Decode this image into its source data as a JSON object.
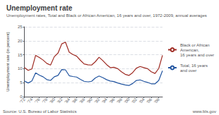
{
  "chart_data": {
    "type": "line",
    "title": "Unemployment rate",
    "subtitle": "Unemployment rates, Total and Black or African American, 16 years and over, 1972-2009, annual averages",
    "ylabel": "Unemployment rate (in percent)",
    "annotations": [
      "Source: U.S. Bureau of Labor Statistics",
      "www.bls.gov"
    ],
    "x": [
      1972,
      1973,
      1974,
      1975,
      1976,
      1977,
      1978,
      1979,
      1980,
      1981,
      1982,
      1983,
      1984,
      1985,
      1986,
      1987,
      1988,
      1989,
      1990,
      1991,
      1992,
      1993,
      1994,
      1995,
      1996,
      1997,
      1998,
      1999,
      2000,
      2001,
      2002,
      2003,
      2004,
      2005,
      2006,
      2007,
      2008,
      2009
    ],
    "series": [
      {
        "name": "Black or African\nAmerican,\n16 years and over",
        "color": "#9e2a22",
        "values": [
          10.4,
          9.4,
          9.9,
          14.8,
          14.0,
          13.1,
          11.9,
          11.3,
          14.3,
          15.6,
          18.9,
          19.5,
          15.9,
          15.1,
          14.5,
          13.0,
          11.7,
          11.4,
          11.3,
          12.5,
          14.1,
          12.9,
          11.5,
          10.4,
          10.5,
          10.0,
          8.9,
          8.0,
          7.6,
          8.6,
          10.2,
          10.8,
          10.4,
          10.0,
          8.9,
          8.3,
          10.1,
          14.8
        ]
      },
      {
        "name": "Total, 16 years\nand over",
        "color": "#2255a0",
        "values": [
          5.6,
          4.9,
          5.6,
          8.5,
          7.7,
          7.1,
          6.1,
          5.8,
          7.1,
          7.6,
          9.7,
          9.6,
          7.5,
          7.2,
          7.0,
          6.2,
          5.5,
          5.3,
          5.5,
          6.7,
          7.4,
          6.8,
          6.1,
          5.6,
          5.4,
          4.9,
          4.5,
          4.2,
          4.0,
          4.7,
          5.8,
          6.0,
          5.5,
          5.1,
          4.6,
          4.6,
          5.8,
          9.3
        ]
      }
    ],
    "xlim": [
      1972,
      2009
    ],
    "xticks": [
      {
        "value": 1972,
        "label": "'72"
      },
      {
        "value": 1974,
        "label": "'74"
      },
      {
        "value": 1976,
        "label": "'76"
      },
      {
        "value": 1978,
        "label": "'78"
      },
      {
        "value": 1980,
        "label": "'80"
      },
      {
        "value": 1982,
        "label": "'82"
      },
      {
        "value": 1984,
        "label": "'84"
      },
      {
        "value": 1986,
        "label": "'86"
      },
      {
        "value": 1988,
        "label": "'88"
      },
      {
        "value": 1990,
        "label": "'90"
      },
      {
        "value": 1992,
        "label": "'92"
      },
      {
        "value": 1994,
        "label": "'94"
      },
      {
        "value": 1996,
        "label": "'96"
      },
      {
        "value": 1998,
        "label": "'98"
      },
      {
        "value": 2000,
        "label": "'00"
      },
      {
        "value": 2002,
        "label": "'02"
      },
      {
        "value": 2004,
        "label": "'04"
      },
      {
        "value": 2006,
        "label": "'06"
      },
      {
        "value": 2008,
        "label": "'08"
      }
    ],
    "ylim": [
      0,
      25
    ],
    "yticks": [
      0,
      5,
      10,
      15,
      20,
      25
    ],
    "grid": true,
    "legend": "right"
  }
}
